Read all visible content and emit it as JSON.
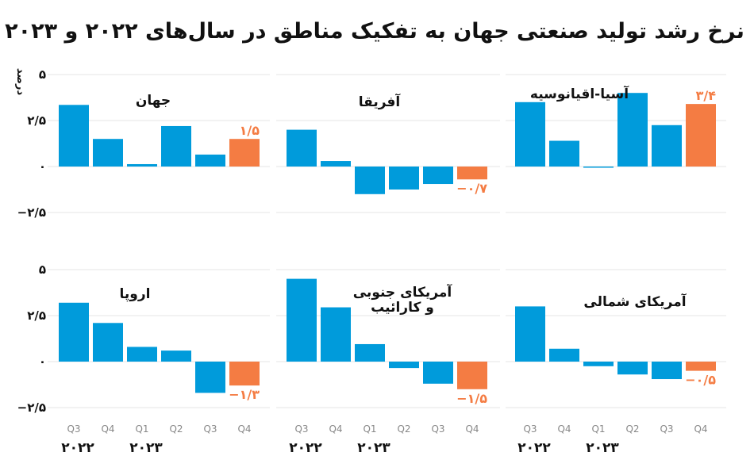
{
  "chart_data": {
    "type": "bar",
    "title": "نرخ رشد تولید صنعتی جهان به تفکیک مناطق در سال‌های ۲۰۲۲ و ۲۰۲۳",
    "ylabel": "درصد",
    "ylim": [
      -2.5,
      5
    ],
    "yticks": [
      5,
      2.5,
      0,
      -2.5
    ],
    "ytick_labels": [
      "۵",
      "۲/۵",
      "۰",
      "−۲/۵"
    ],
    "categories": [
      "Q3",
      "Q4",
      "Q1",
      "Q2",
      "Q3",
      "Q4"
    ],
    "years": [
      "۲۰۲۲",
      "۲۰۲۳"
    ],
    "grid": true,
    "colors": {
      "default": "#009bdb",
      "highlight": "#f47c43"
    },
    "panels": [
      {
        "name": "جهان",
        "values": [
          3.35,
          1.5,
          0.13,
          2.2,
          0.65,
          1.5
        ],
        "label": "۱/۵"
      },
      {
        "name": "آفریقا",
        "values": [
          2.0,
          0.3,
          -1.5,
          -1.25,
          -0.95,
          -0.7
        ],
        "label": "−۰/۷"
      },
      {
        "name": "آسیا-اقیانوسیه",
        "values": [
          3.5,
          1.4,
          -0.05,
          4.0,
          2.25,
          3.4
        ],
        "label": "۳/۴"
      },
      {
        "name": "اروپا",
        "values": [
          3.2,
          2.1,
          0.8,
          0.6,
          -1.7,
          -1.3
        ],
        "label": "−۱/۳"
      },
      {
        "name": "آمریکای جنوبی و کارائیب",
        "name_lines": [
          "آمریکای جنوبی",
          "و کارائیب"
        ],
        "values": [
          4.5,
          2.95,
          0.95,
          -0.35,
          -1.2,
          -1.5
        ],
        "label": "−۱/۵"
      },
      {
        "name": "آمریکای شمالی",
        "values": [
          3.0,
          0.7,
          -0.25,
          -0.7,
          -0.95,
          -0.5
        ],
        "label": "−۰/۵"
      }
    ]
  }
}
